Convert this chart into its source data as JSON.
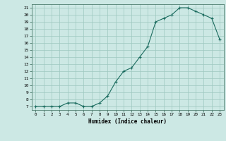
{
  "x": [
    0,
    1,
    2,
    3,
    4,
    5,
    6,
    7,
    8,
    9,
    10,
    11,
    12,
    13,
    14,
    15,
    16,
    17,
    18,
    19,
    20,
    21,
    22,
    23
  ],
  "y": [
    7,
    7,
    7,
    7,
    7.5,
    7.5,
    7,
    7,
    7.5,
    8.5,
    10.5,
    12,
    12.5,
    14,
    15.5,
    19,
    19.5,
    20,
    21,
    21,
    20.5,
    20,
    19.5,
    16.5
  ],
  "title": "",
  "xlabel": "Humidex (Indice chaleur)",
  "xlim": [
    -0.5,
    23.5
  ],
  "ylim": [
    6.5,
    21.5
  ],
  "yticks": [
    7,
    8,
    9,
    10,
    11,
    12,
    13,
    14,
    15,
    16,
    17,
    18,
    19,
    20,
    21
  ],
  "xticks": [
    0,
    1,
    2,
    3,
    4,
    5,
    6,
    7,
    8,
    9,
    10,
    11,
    12,
    13,
    14,
    15,
    16,
    17,
    18,
    19,
    20,
    21,
    22,
    23
  ],
  "line_color": "#1a6b5e",
  "bg_color": "#cce8e4",
  "grid_color": "#9ec8c0"
}
